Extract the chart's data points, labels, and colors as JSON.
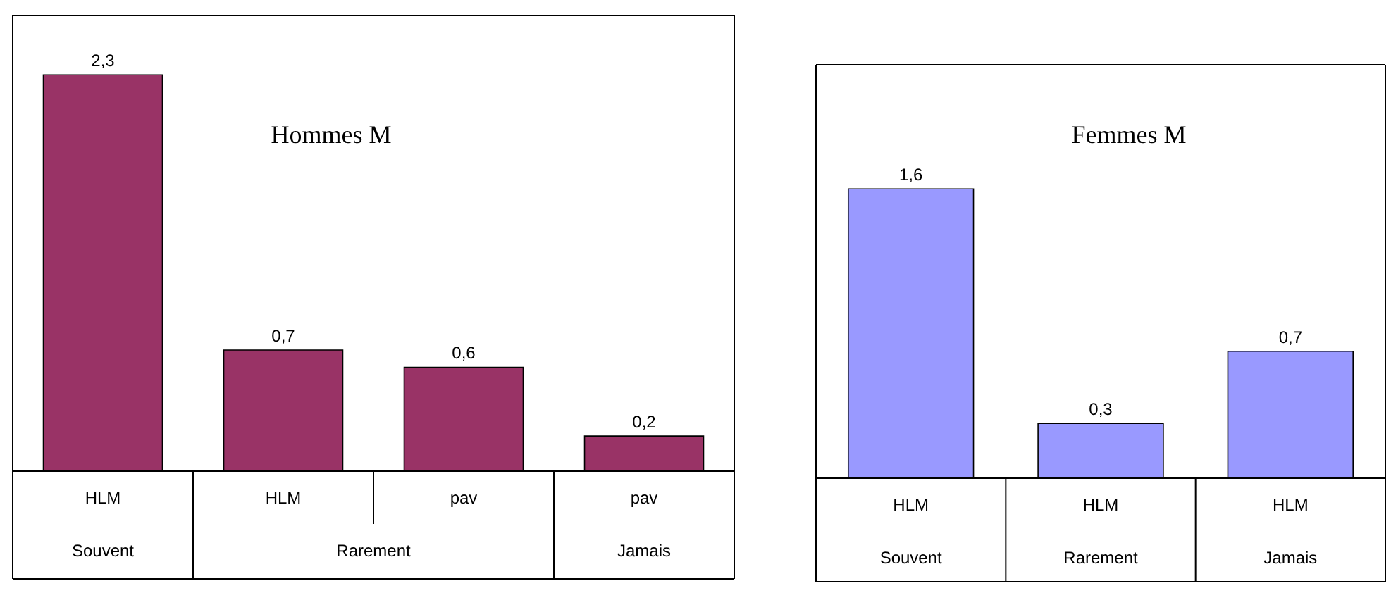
{
  "chart_data": [
    {
      "type": "bar",
      "title": "Hommes M",
      "categories": [
        "HLM",
        "HLM",
        "pav",
        "pav"
      ],
      "values": [
        2.3,
        0.7,
        0.6,
        0.2
      ],
      "value_labels": [
        "2,3",
        "0,7",
        "0,6",
        "0,2"
      ],
      "color": "#993366",
      "annotations": [
        "Souvent",
        "Rarement",
        "Jamais"
      ]
    },
    {
      "type": "bar",
      "title": "Femmes M",
      "categories": [
        "HLM",
        "HLM",
        "HLM"
      ],
      "values": [
        1.6,
        0.3,
        0.7
      ],
      "value_labels": [
        "1,6",
        "0,3",
        "0,7"
      ],
      "color": "#9999ff",
      "annotations": [
        "Souvent",
        "Rarement",
        "Jamais"
      ]
    }
  ]
}
